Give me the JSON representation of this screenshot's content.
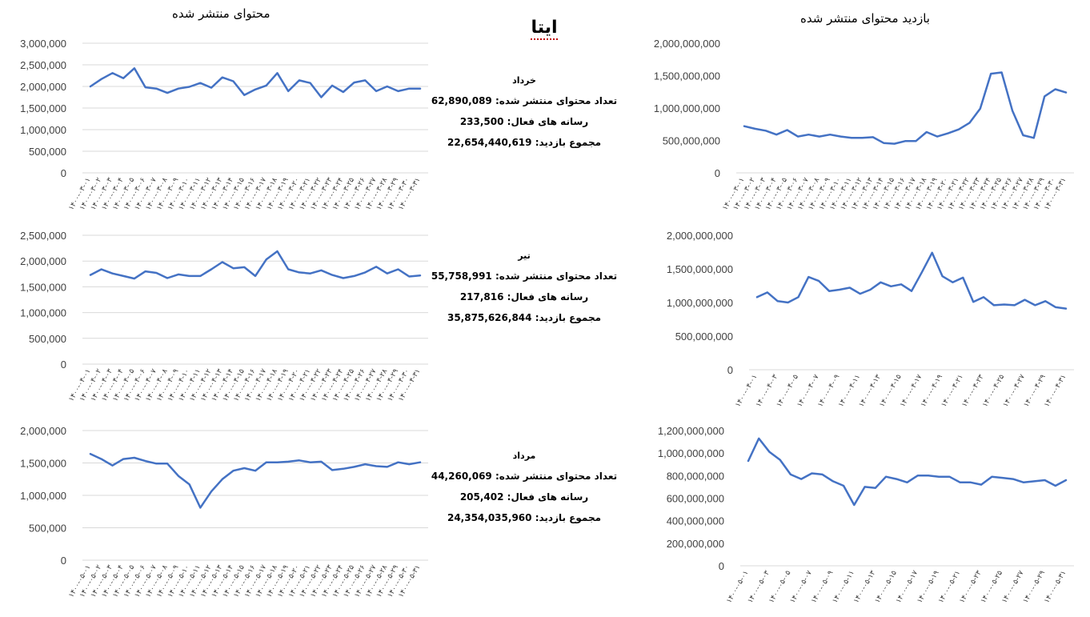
{
  "header": {
    "left_title": "محتوای منتشر شده",
    "right_title": "بازدید محتوای منتشر شده",
    "main_title": "ایتا"
  },
  "summaries": [
    {
      "month": "خرداد",
      "published_label": "تعداد محتوای منتشر شده:",
      "published_value": "62,890,089",
      "active_label": "رسانه های فعال:",
      "active_value": "233,500",
      "views_label": "مجموع بازدید:",
      "views_value": "22,654,440,619"
    },
    {
      "month": "تیر",
      "published_label": "تعداد محتوای منتشر شده:",
      "published_value": "55,758,991",
      "active_label": "رسانه های فعال:",
      "active_value": "217,816",
      "views_label": "مجموع بازدید:",
      "views_value": "35,875,626,844"
    },
    {
      "month": "مرداد",
      "published_label": "تعداد محتوای منتشر شده:",
      "published_value": "44,260,069",
      "active_label": "رسانه های فعال:",
      "active_value": "205,402",
      "views_label": "مجموع بازدید:",
      "views_value": "24,354,035,960"
    }
  ],
  "chart_data": [
    {
      "type": "line",
      "title": "محتوای منتشر شده",
      "x": [
        "۱۴۰۰-۰۳-۰۱",
        "۱۴۰۰-۰۳-۰۲",
        "۱۴۰۰-۰۳-۰۳",
        "۱۴۰۰-۰۳-۰۴",
        "۱۴۰۰-۰۳-۰۵",
        "۱۴۰۰-۰۳-۰۶",
        "۱۴۰۰-۰۳-۰۷",
        "۱۴۰۰-۰۳-۰۸",
        "۱۴۰۰-۰۳-۰۹",
        "۱۴۰۰-۰۳-۱۰",
        "۱۴۰۰-۰۳-۱۱",
        "۱۴۰۰-۰۳-۱۲",
        "۱۴۰۰-۰۳-۱۳",
        "۱۴۰۰-۰۳-۱۴",
        "۱۴۰۰-۰۳-۱۵",
        "۱۴۰۰-۰۳-۱۶",
        "۱۴۰۰-۰۳-۱۷",
        "۱۴۰۰-۰۳-۱۸",
        "۱۴۰۰-۰۳-۱۹",
        "۱۴۰۰-۰۳-۲۰",
        "۱۴۰۰-۰۳-۲۱",
        "۱۴۰۰-۰۳-۲۲",
        "۱۴۰۰-۰۳-۲۳",
        "۱۴۰۰-۰۳-۲۴",
        "۱۴۰۰-۰۳-۲۵",
        "۱۴۰۰-۰۳-۲۶",
        "۱۴۰۰-۰۳-۲۷",
        "۱۴۰۰-۰۳-۲۸",
        "۱۴۰۰-۰۳-۲۹",
        "۱۴۰۰-۰۳-۳۰",
        "۱۴۰۰-۰۳-۳۱"
      ],
      "values": [
        2000000,
        2170000,
        2310000,
        2190000,
        2420000,
        1980000,
        1950000,
        1850000,
        1950000,
        1990000,
        2080000,
        1970000,
        2210000,
        2120000,
        1800000,
        1930000,
        2020000,
        2310000,
        1890000,
        2140000,
        2080000,
        1750000,
        2020000,
        1870000,
        2090000,
        2140000,
        1890000,
        2000000,
        1890000,
        1950000,
        1950000
      ],
      "yticks": [
        0,
        500000,
        1000000,
        1500000,
        2000000,
        2500000,
        3000000
      ],
      "ytick_labels": [
        "0",
        "500,000",
        "1,000,000",
        "1,500,000",
        "2,000,000",
        "2,500,000",
        "3,000,000"
      ],
      "ylim": [
        0,
        3000000
      ],
      "grid": true,
      "color": "#4472c4"
    },
    {
      "type": "line",
      "title": "بازدید محتوای منتشر شده",
      "x": [
        "۱۴۰۰-۰۳-۰۱",
        "۱۴۰۰-۰۳-۰۲",
        "۱۴۰۰-۰۳-۰۳",
        "۱۴۰۰-۰۳-۰۴",
        "۱۴۰۰-۰۳-۰۵",
        "۱۴۰۰-۰۳-۰۶",
        "۱۴۰۰-۰۳-۰۷",
        "۱۴۰۰-۰۳-۰۸",
        "۱۴۰۰-۰۳-۰۹",
        "۱۴۰۰-۰۳-۱۰",
        "۱۴۰۰-۰۳-۱۱",
        "۱۴۰۰-۰۳-۱۲",
        "۱۴۰۰-۰۳-۱۳",
        "۱۴۰۰-۰۳-۱۴",
        "۱۴۰۰-۰۳-۱۵",
        "۱۴۰۰-۰۳-۱۶",
        "۱۴۰۰-۰۳-۱۷",
        "۱۴۰۰-۰۳-۱۸",
        "۱۴۰۰-۰۳-۱۹",
        "۱۴۰۰-۰۳-۲۰",
        "۱۴۰۰-۰۳-۲۱",
        "۱۴۰۰-۰۳-۲۲",
        "۱۴۰۰-۰۳-۲۳",
        "۱۴۰۰-۰۳-۲۴",
        "۱۴۰۰-۰۳-۲۵",
        "۱۴۰۰-۰۳-۲۶",
        "۱۴۰۰-۰۳-۲۷",
        "۱۴۰۰-۰۳-۲۸",
        "۱۴۰۰-۰۳-۲۹",
        "۱۴۰۰-۰۳-۳۰",
        "۱۴۰۰-۰۳-۳۱"
      ],
      "values": [
        720000000,
        680000000,
        650000000,
        590000000,
        660000000,
        560000000,
        590000000,
        560000000,
        590000000,
        560000000,
        540000000,
        540000000,
        550000000,
        460000000,
        450000000,
        490000000,
        490000000,
        630000000,
        560000000,
        610000000,
        670000000,
        770000000,
        990000000,
        1530000000,
        1550000000,
        960000000,
        580000000,
        540000000,
        1180000000,
        1290000000,
        1240000000
      ],
      "yticks": [
        0,
        500000000,
        1000000000,
        1500000000,
        2000000000
      ],
      "ytick_labels": [
        "0",
        "500,000,000",
        "1,000,000,000",
        "1,500,000,000",
        "2,000,000,000"
      ],
      "ylim": [
        0,
        2000000000
      ],
      "grid": false,
      "color": "#4472c4"
    },
    {
      "type": "line",
      "title": "",
      "x": [
        "۱۴۰۰-۰۴-۰۱",
        "۱۴۰۰-۰۴-۰۲",
        "۱۴۰۰-۰۴-۰۳",
        "۱۴۰۰-۰۴-۰۴",
        "۱۴۰۰-۰۴-۰۵",
        "۱۴۰۰-۰۴-۰۶",
        "۱۴۰۰-۰۴-۰۷",
        "۱۴۰۰-۰۴-۰۸",
        "۱۴۰۰-۰۴-۰۹",
        "۱۴۰۰-۰۴-۱۰",
        "۱۴۰۰-۰۴-۱۱",
        "۱۴۰۰-۰۴-۱۲",
        "۱۴۰۰-۰۴-۱۳",
        "۱۴۰۰-۰۴-۱۴",
        "۱۴۰۰-۰۴-۱۵",
        "۱۴۰۰-۰۴-۱۶",
        "۱۴۰۰-۰۴-۱۷",
        "۱۴۰۰-۰۴-۱۸",
        "۱۴۰۰-۰۴-۱۹",
        "۱۴۰۰-۰۴-۲۰",
        "۱۴۰۰-۰۴-۲۱",
        "۱۴۰۰-۰۴-۲۲",
        "۱۴۰۰-۰۴-۲۳",
        "۱۴۰۰-۰۴-۲۴",
        "۱۴۰۰-۰۴-۲۵",
        "۱۴۰۰-۰۴-۲۶",
        "۱۴۰۰-۰۴-۲۷",
        "۱۴۰۰-۰۴-۲۸",
        "۱۴۰۰-۰۴-۲۹",
        "۱۴۰۰-۰۴-۳۰",
        "۱۴۰۰-۰۴-۳۱"
      ],
      "values": [
        1730000,
        1840000,
        1760000,
        1710000,
        1660000,
        1800000,
        1770000,
        1670000,
        1740000,
        1710000,
        1710000,
        1840000,
        1980000,
        1860000,
        1880000,
        1710000,
        2030000,
        2190000,
        1840000,
        1780000,
        1760000,
        1820000,
        1730000,
        1670000,
        1710000,
        1780000,
        1890000,
        1760000,
        1840000,
        1700000,
        1720000
      ],
      "yticks": [
        0,
        500000,
        1000000,
        1500000,
        2000000,
        2500000
      ],
      "ytick_labels": [
        "0",
        "500,000",
        "1,000,000",
        "1,500,000",
        "2,000,000",
        "2,500,000"
      ],
      "ylim": [
        0,
        2500000
      ],
      "grid": true,
      "color": "#4472c4"
    },
    {
      "type": "line",
      "title": "",
      "x": [
        "۱۴۰۰-۰۴-۰۱",
        "۱۴۰۰-۰۴-۰۲",
        "۱۴۰۰-۰۴-۰۳",
        "۱۴۰۰-۰۴-۰۴",
        "۱۴۰۰-۰۴-۰۵",
        "۱۴۰۰-۰۴-۰۶",
        "۱۴۰۰-۰۴-۰۷",
        "۱۴۰۰-۰۴-۰۸",
        "۱۴۰۰-۰۴-۰۹",
        "۱۴۰۰-۰۴-۱۰",
        "۱۴۰۰-۰۴-۱۱",
        "۱۴۰۰-۰۴-۱۲",
        "۱۴۰۰-۰۴-۱۳",
        "۱۴۰۰-۰۴-۱۴",
        "۱۴۰۰-۰۴-۱۵",
        "۱۴۰۰-۰۴-۱۶",
        "۱۴۰۰-۰۴-۱۷",
        "۱۴۰۰-۰۴-۱۸",
        "۱۴۰۰-۰۴-۱۹",
        "۱۴۰۰-۰۴-۲۰",
        "۱۴۰۰-۰۴-۲۱",
        "۱۴۰۰-۰۴-۲۲",
        "۱۴۰۰-۰۴-۲۳",
        "۱۴۰۰-۰۴-۲۴",
        "۱۴۰۰-۰۴-۲۵",
        "۱۴۰۰-۰۴-۲۶",
        "۱۴۰۰-۰۴-۲۷",
        "۱۴۰۰-۰۴-۲۸",
        "۱۴۰۰-۰۴-۲۹",
        "۱۴۰۰-۰۴-۳۰",
        "۱۴۰۰-۰۴-۳۱"
      ],
      "values": [
        1080000000,
        1150000000,
        1020000000,
        1000000000,
        1080000000,
        1380000000,
        1320000000,
        1170000000,
        1190000000,
        1220000000,
        1130000000,
        1190000000,
        1300000000,
        1240000000,
        1270000000,
        1170000000,
        1450000000,
        1740000000,
        1390000000,
        1300000000,
        1370000000,
        1010000000,
        1080000000,
        960000000,
        970000000,
        960000000,
        1040000000,
        960000000,
        1020000000,
        930000000,
        910000000
      ],
      "x_labels_shown": [
        "۱۴۰۰-۰۴-۰۱",
        "۱۴۰۰-۰۴-۰۳",
        "۱۴۰۰-۰۴-۰۵",
        "۱۴۰۰-۰۴-۰۷",
        "۱۴۰۰-۰۴-۰۹",
        "۱۴۰۰-۰۴-۱۱",
        "۱۴۰۰-۰۴-۱۳",
        "۱۴۰۰-۰۴-۱۵",
        "۱۴۰۰-۰۴-۱۷",
        "۱۴۰۰-۰۴-۱۹",
        "۱۴۰۰-۰۴-۲۱",
        "۱۴۰۰-۰۴-۲۳",
        "۱۴۰۰-۰۴-۲۵",
        "۱۴۰۰-۰۴-۲۷",
        "۱۴۰۰-۰۴-۲۹",
        "۱۴۰۰-۰۴-۳۱"
      ],
      "yticks": [
        0,
        500000000,
        1000000000,
        1500000000,
        2000000000
      ],
      "ytick_labels": [
        "0",
        "500,000,000",
        "1,000,000,000",
        "1,500,000,000",
        "2,000,000,000"
      ],
      "ylim": [
        0,
        2000000000
      ],
      "grid": false,
      "color": "#4472c4"
    },
    {
      "type": "line",
      "title": "",
      "x": [
        "۱۴۰۰-۰۵-۰۱",
        "۱۴۰۰-۰۵-۰۲",
        "۱۴۰۰-۰۵-۰۳",
        "۱۴۰۰-۰۵-۰۴",
        "۱۴۰۰-۰۵-۰۵",
        "۱۴۰۰-۰۵-۰۶",
        "۱۴۰۰-۰۵-۰۷",
        "۱۴۰۰-۰۵-۰۸",
        "۱۴۰۰-۰۵-۰۹",
        "۱۴۰۰-۰۵-۱۰",
        "۱۴۰۰-۰۵-۱۱",
        "۱۴۰۰-۰۵-۱۲",
        "۱۴۰۰-۰۵-۱۳",
        "۱۴۰۰-۰۵-۱۴",
        "۱۴۰۰-۰۵-۱۵",
        "۱۴۰۰-۰۵-۱۶",
        "۱۴۰۰-۰۵-۱۷",
        "۱۴۰۰-۰۵-۱۸",
        "۱۴۰۰-۰۵-۱۹",
        "۱۴۰۰-۰۵-۲۰",
        "۱۴۰۰-۰۵-۲۱",
        "۱۴۰۰-۰۵-۲۲",
        "۱۴۰۰-۰۵-۲۳",
        "۱۴۰۰-۰۵-۲۴",
        "۱۴۰۰-۰۵-۲۵",
        "۱۴۰۰-۰۵-۲۶",
        "۱۴۰۰-۰۵-۲۷",
        "۱۴۰۰-۰۵-۲۸",
        "۱۴۰۰-۰۵-۲۹",
        "۱۴۰۰-۰۵-۳۰",
        "۱۴۰۰-۰۵-۳۱"
      ],
      "values": [
        1640000,
        1560000,
        1460000,
        1560000,
        1580000,
        1530000,
        1490000,
        1490000,
        1300000,
        1170000,
        810000,
        1060000,
        1250000,
        1380000,
        1420000,
        1380000,
        1510000,
        1510000,
        1520000,
        1540000,
        1510000,
        1520000,
        1390000,
        1410000,
        1440000,
        1480000,
        1450000,
        1440000,
        1510000,
        1480000,
        1510000
      ],
      "yticks": [
        0,
        500000,
        1000000,
        1500000,
        2000000
      ],
      "ytick_labels": [
        "0",
        "500,000",
        "1,000,000",
        "1,500,000",
        "2,000,000"
      ],
      "ylim": [
        0,
        2000000
      ],
      "grid": true,
      "color": "#4472c4"
    },
    {
      "type": "line",
      "title": "",
      "x": [
        "۱۴۰۰-۰۵-۰۱",
        "۱۴۰۰-۰۵-۰۲",
        "۱۴۰۰-۰۵-۰۳",
        "۱۴۰۰-۰۵-۰۴",
        "۱۴۰۰-۰۵-۰۵",
        "۱۴۰۰-۰۵-۰۶",
        "۱۴۰۰-۰۵-۰۷",
        "۱۴۰۰-۰۵-۰۸",
        "۱۴۰۰-۰۵-۰۹",
        "۱۴۰۰-۰۵-۱۰",
        "۱۴۰۰-۰۵-۱۱",
        "۱۴۰۰-۰۵-۱۲",
        "۱۴۰۰-۰۵-۱۳",
        "۱۴۰۰-۰۵-۱۴",
        "۱۴۰۰-۰۵-۱۵",
        "۱۴۰۰-۰۵-۱۶",
        "۱۴۰۰-۰۵-۱۷",
        "۱۴۰۰-۰۵-۱۸",
        "۱۴۰۰-۰۵-۱۹",
        "۱۴۰۰-۰۵-۲۰",
        "۱۴۰۰-۰۵-۲۱",
        "۱۴۰۰-۰۵-۲۲",
        "۱۴۰۰-۰۵-۲۳",
        "۱۴۰۰-۰۵-۲۴",
        "۱۴۰۰-۰۵-۲۵",
        "۱۴۰۰-۰۵-۲۶",
        "۱۴۰۰-۰۵-۲۷",
        "۱۴۰۰-۰۵-۲۸",
        "۱۴۰۰-۰۵-۲۹",
        "۱۴۰۰-۰۵-۳۰",
        "۱۴۰۰-۰۵-۳۱"
      ],
      "values": [
        930000000,
        1130000000,
        1010000000,
        940000000,
        810000000,
        770000000,
        820000000,
        810000000,
        750000000,
        710000000,
        540000000,
        700000000,
        690000000,
        790000000,
        770000000,
        740000000,
        800000000,
        800000000,
        790000000,
        790000000,
        740000000,
        740000000,
        720000000,
        790000000,
        780000000,
        770000000,
        740000000,
        750000000,
        760000000,
        710000000,
        760000000
      ],
      "x_labels_shown": [
        "۱۴۰۰-۰۵-۰۱",
        "۱۴۰۰-۰۵-۰۳",
        "۱۴۰۰-۰۵-۰۵",
        "۱۴۰۰-۰۵-۰۷",
        "۱۴۰۰-۰۵-۰۹",
        "۱۴۰۰-۰۵-۱۱",
        "۱۴۰۰-۰۵-۱۳",
        "۱۴۰۰-۰۵-۱۵",
        "۱۴۰۰-۰۵-۱۷",
        "۱۴۰۰-۰۵-۱۹",
        "۱۴۰۰-۰۵-۲۱",
        "۱۴۰۰-۰۵-۲۳",
        "۱۴۰۰-۰۵-۲۵",
        "۱۴۰۰-۰۵-۲۷",
        "۱۴۰۰-۰۵-۲۹",
        "۱۴۰۰-۰۵-۳۱"
      ],
      "yticks": [
        0,
        200000000,
        400000000,
        600000000,
        800000000,
        1000000000,
        1200000000
      ],
      "ytick_labels": [
        "0",
        "200,000,000",
        "400,000,000",
        "600,000,000",
        "800,000,000",
        "1,000,000,000",
        "1,200,000,000"
      ],
      "ylim": [
        0,
        1200000000
      ],
      "grid": false,
      "color": "#4472c4"
    }
  ]
}
